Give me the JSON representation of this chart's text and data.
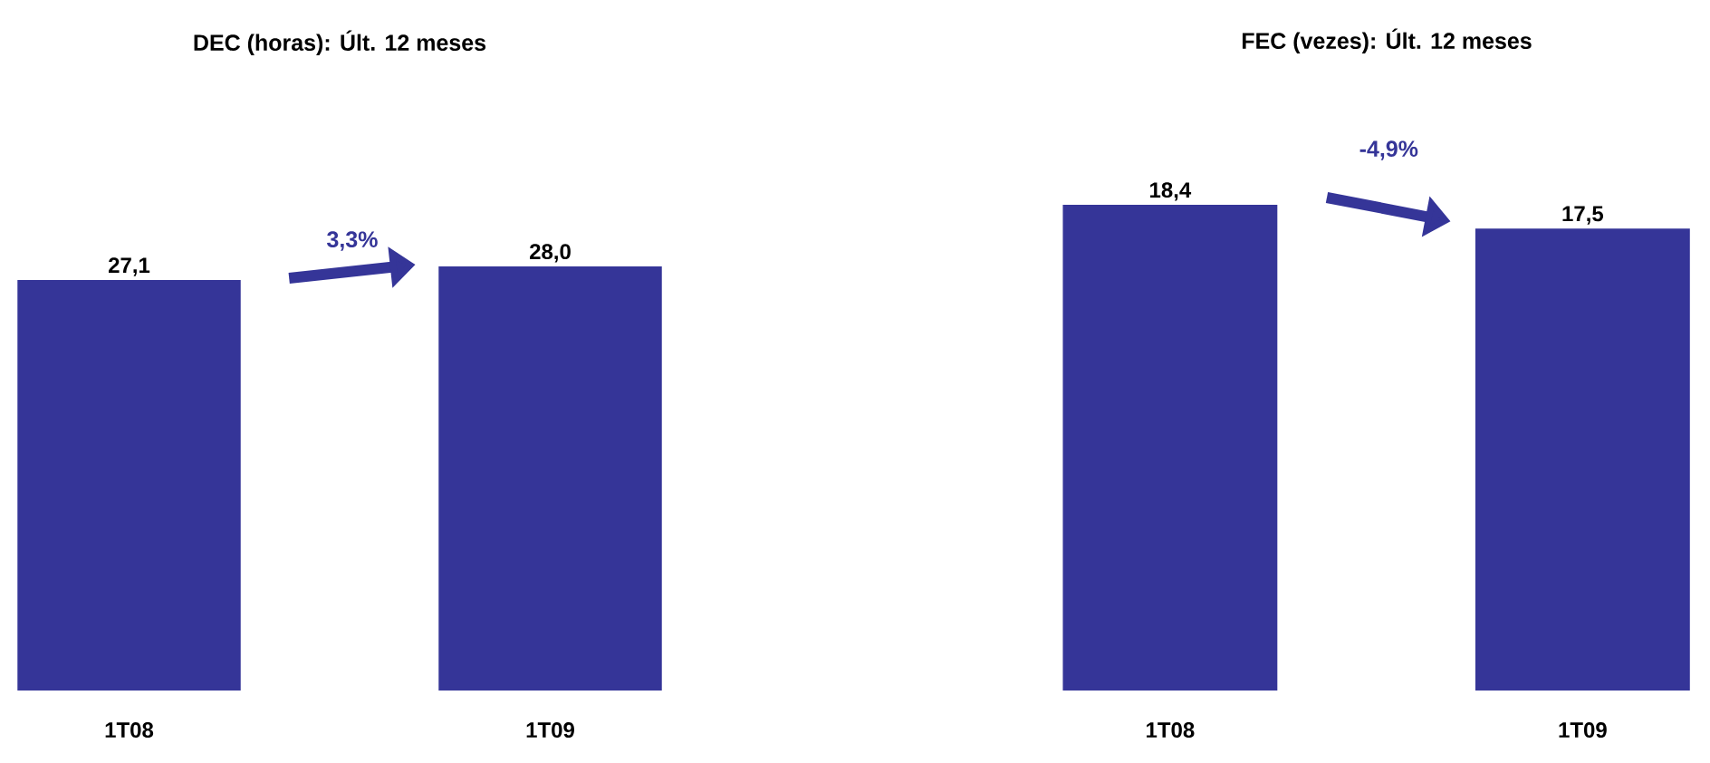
{
  "chart_data": [
    {
      "type": "bar",
      "title": "DEC (horas): Últ. 12 meses",
      "categories": [
        "1T08",
        "1T09"
      ],
      "values": [
        27.1,
        28.0
      ],
      "value_labels": [
        "27,1",
        "28,0"
      ],
      "color": "#353598",
      "tick_labels": "x",
      "annotations": [
        "3,3%"
      ]
    },
    {
      "type": "bar",
      "title": "FEC (vezes): Últ. 12 meses",
      "categories": [
        "1T08",
        "1T09"
      ],
      "values": [
        18.4,
        17.5
      ],
      "value_labels": [
        "18,4",
        "17,5"
      ],
      "color": "#353598",
      "tick_labels": "x",
      "annotations": [
        "-4,9%"
      ]
    }
  ]
}
